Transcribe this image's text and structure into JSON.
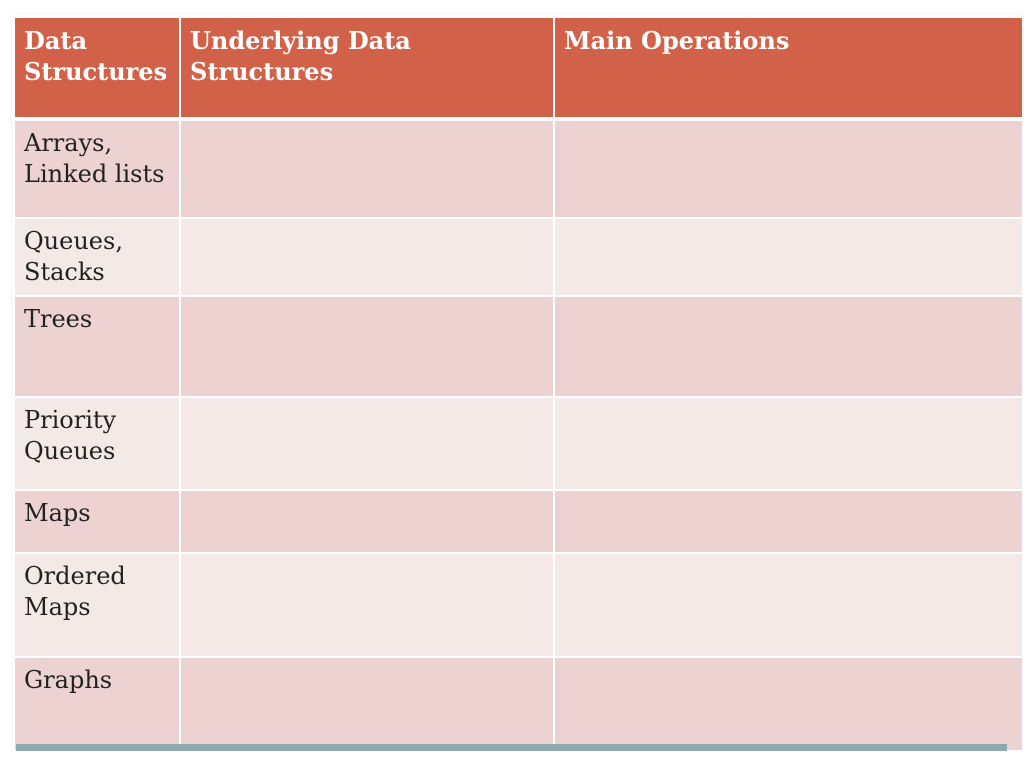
{
  "table": {
    "headers": [
      "Data Structures",
      "Underlying Data Structures",
      "Main Operations"
    ],
    "rows": [
      [
        "Arrays, Linked lists",
        "",
        ""
      ],
      [
        "Queues, Stacks",
        "",
        ""
      ],
      [
        "Trees",
        "",
        ""
      ],
      [
        "Priority Queues",
        "",
        ""
      ],
      [
        "Maps",
        "",
        ""
      ],
      [
        "Ordered Maps",
        "",
        ""
      ],
      [
        "Graphs",
        "",
        ""
      ]
    ]
  },
  "colors": {
    "header_bg": "#d2614a",
    "row_odd_bg": "#ecd2d0",
    "row_even_bg": "#f5e9e7",
    "accent_bar": "#8fa8ab"
  }
}
